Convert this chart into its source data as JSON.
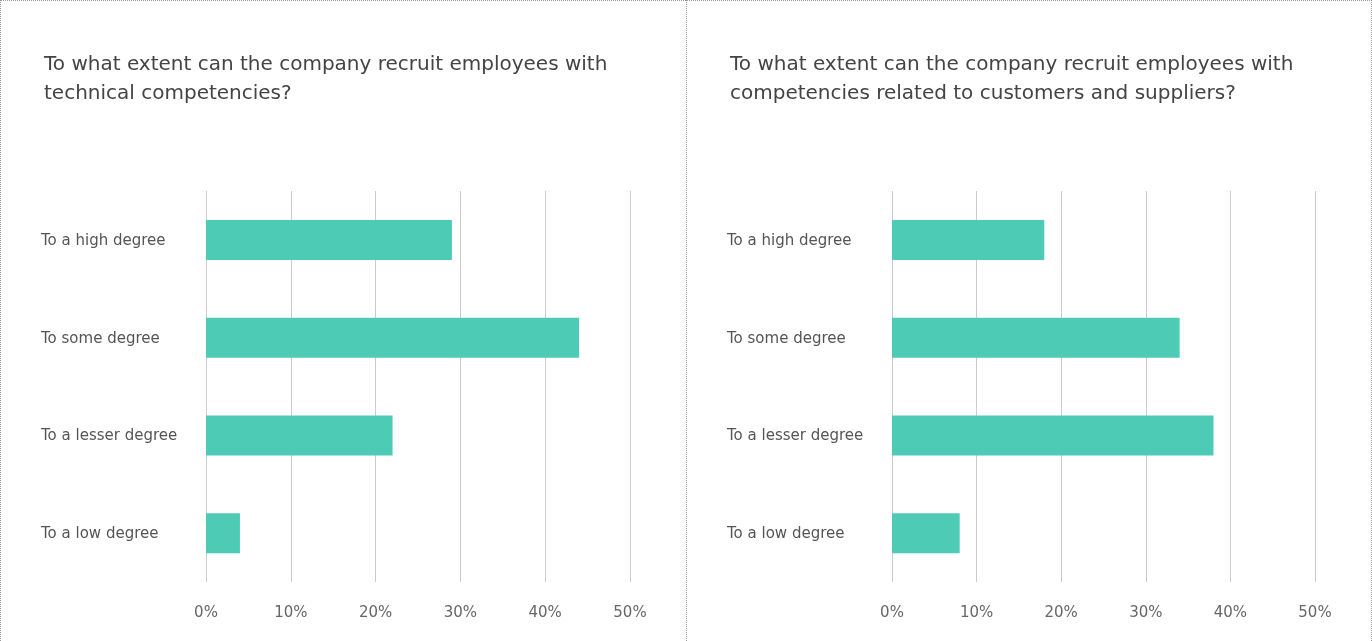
{
  "chart_data": [
    {
      "type": "bar",
      "orientation": "horizontal",
      "title": "To what extent can the company recruit employees with technical competencies?",
      "categories": [
        "To a high degree",
        "To some degree",
        "To a lesser degree",
        "To a low degree"
      ],
      "values": [
        29,
        44,
        22,
        4
      ],
      "color": "#4ecbb4",
      "xlim": [
        0,
        50
      ],
      "xticks": [
        {
          "value": 0,
          "label": "0%"
        },
        {
          "value": 10,
          "label": "10%"
        },
        {
          "value": 20,
          "label": "20%"
        },
        {
          "value": 30,
          "label": "30%"
        },
        {
          "value": 40,
          "label": "40%"
        },
        {
          "value": 50,
          "label": "50%"
        }
      ],
      "grid": "x"
    },
    {
      "type": "bar",
      "orientation": "horizontal",
      "title": "To what extent can the company recruit employees with competencies related to customers and suppliers?",
      "categories": [
        "To a high degree",
        "To some degree",
        "To a lesser degree",
        "To a low degree"
      ],
      "values": [
        18,
        34,
        38,
        8
      ],
      "color": "#4ecbb4",
      "xlim": [
        0,
        50
      ],
      "xticks": [
        {
          "value": 0,
          "label": "0%"
        },
        {
          "value": 10,
          "label": "10%"
        },
        {
          "value": 20,
          "label": "20%"
        },
        {
          "value": 30,
          "label": "30%"
        },
        {
          "value": 40,
          "label": "40%"
        },
        {
          "value": 50,
          "label": "50%"
        }
      ],
      "grid": "x"
    }
  ]
}
